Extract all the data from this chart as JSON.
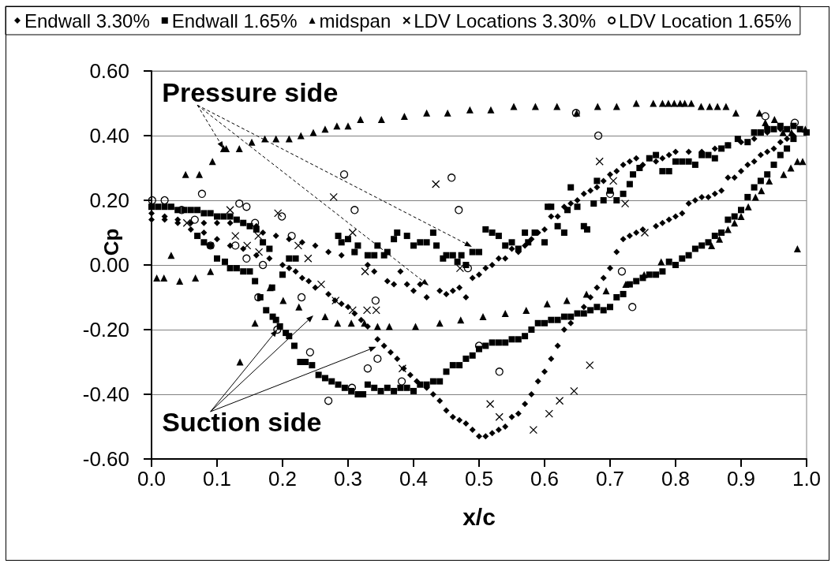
{
  "chart_data": {
    "type": "scatter",
    "xlabel": "x/c",
    "ylabel": "Cp",
    "xlim": [
      0,
      1
    ],
    "xticks": [
      {
        "value": 0,
        "label": "0.0"
      },
      {
        "value": 0.1,
        "label": "0.1"
      },
      {
        "value": 0.2,
        "label": "0.2"
      },
      {
        "value": 0.3,
        "label": "0.3"
      },
      {
        "value": 0.4,
        "label": "0.4"
      },
      {
        "value": 0.5,
        "label": "0.5"
      },
      {
        "value": 0.6,
        "label": "0.6"
      },
      {
        "value": 0.7,
        "label": "0.7"
      },
      {
        "value": 0.8,
        "label": "0.8"
      },
      {
        "value": 0.9,
        "label": "0.9"
      },
      {
        "value": 1,
        "label": "1.0"
      }
    ],
    "ylim": [
      -0.6,
      0.6
    ],
    "yticks": [
      {
        "value": -0.6,
        "label": "-0.60"
      },
      {
        "value": -0.4,
        "label": "-0.40"
      },
      {
        "value": -0.2,
        "label": "-0.20"
      },
      {
        "value": 0,
        "label": "0.00"
      },
      {
        "value": 0.2,
        "label": "0.20"
      },
      {
        "value": 0.4,
        "label": "0.40"
      },
      {
        "value": 0.6,
        "label": "0.60"
      }
    ],
    "grid": "y",
    "legend": "top left",
    "annotations": [
      {
        "text": "Pressure side",
        "x": 0.11,
        "y": 0.36
      },
      {
        "text": "Suction side",
        "x": 0.192,
        "y": -0.2
      }
    ],
    "series": [
      {
        "name": "Endwall 3.30%",
        "color": "#000000",
        "marker": "diamond",
        "x": [
          0.0,
          0.02,
          0.04,
          0.06,
          0.08,
          0.1,
          0.12,
          0.14,
          0.16,
          0.17,
          0.19,
          0.21,
          0.23,
          0.25,
          0.27,
          0.29,
          0.31,
          0.33,
          0.34,
          0.36,
          0.37,
          0.38,
          0.39,
          0.4,
          0.41,
          0.42,
          0.44,
          0.45,
          0.46,
          0.47,
          0.48,
          0.49,
          0.5,
          0.51,
          0.52,
          0.53,
          0.54,
          0.55,
          0.56,
          0.57,
          0.58,
          0.59,
          0.6,
          0.61,
          0.62,
          0.63,
          0.64,
          0.65,
          0.66,
          0.67,
          0.68,
          0.69,
          0.7,
          0.71,
          0.72,
          0.73,
          0.74,
          0.75,
          0.76,
          0.77,
          0.78,
          0.79,
          0.8,
          0.82,
          0.84,
          0.86,
          0.88,
          0.9,
          0.92,
          0.94,
          0.96,
          0.98,
          0.0,
          0.02,
          0.04,
          0.06,
          0.08,
          0.1,
          0.12,
          0.14,
          0.16,
          0.18,
          0.2,
          0.21,
          0.22,
          0.23,
          0.24,
          0.25,
          0.27,
          0.28,
          0.29,
          0.3,
          0.31,
          0.32,
          0.33,
          0.345,
          0.355,
          0.365,
          0.375,
          0.385,
          0.395,
          0.405,
          0.42,
          0.43,
          0.44,
          0.45,
          0.46,
          0.47,
          0.48,
          0.49,
          0.5,
          0.51,
          0.52,
          0.53,
          0.54,
          0.55,
          0.56,
          0.57,
          0.58,
          0.59,
          0.6,
          0.61,
          0.62,
          0.63,
          0.64,
          0.66,
          0.67,
          0.68,
          0.69,
          0.7,
          0.71,
          0.72,
          0.73,
          0.74,
          0.75,
          0.77,
          0.78,
          0.79,
          0.8,
          0.81,
          0.82,
          0.83,
          0.84,
          0.85,
          0.86,
          0.87,
          0.88,
          0.89,
          0.9,
          0.91,
          0.92,
          0.93,
          0.94,
          0.95,
          0.96,
          0.97,
          0.98
        ],
        "values": [
          0.16,
          0.15,
          0.14,
          0.13,
          0.13,
          0.13,
          0.13,
          0.13,
          0.12,
          0.1,
          0.09,
          0.08,
          0.07,
          0.06,
          0.04,
          0.03,
          0.04,
          0.0,
          -0.02,
          -0.05,
          -0.06,
          -0.02,
          -0.06,
          -0.08,
          -0.06,
          -0.1,
          -0.08,
          -0.09,
          -0.08,
          -0.07,
          -0.1,
          -0.04,
          -0.03,
          -0.01,
          0.0,
          0.02,
          0.02,
          0.05,
          0.04,
          0.06,
          0.08,
          0.1,
          0.11,
          0.15,
          0.15,
          0.18,
          0.19,
          0.2,
          0.22,
          0.23,
          0.24,
          0.26,
          0.28,
          0.29,
          0.31,
          0.32,
          0.33,
          0.31,
          0.33,
          0.32,
          0.33,
          0.34,
          0.35,
          0.35,
          0.35,
          0.36,
          0.37,
          0.38,
          0.39,
          0.41,
          0.42,
          0.43,
          0.14,
          0.14,
          0.13,
          0.11,
          0.1,
          0.08,
          0.06,
          0.05,
          0.03,
          0.02,
          0.0,
          -0.01,
          -0.02,
          -0.04,
          -0.05,
          -0.07,
          -0.09,
          -0.11,
          -0.12,
          -0.13,
          -0.15,
          -0.17,
          -0.19,
          -0.23,
          -0.25,
          -0.27,
          -0.29,
          -0.32,
          -0.34,
          -0.36,
          -0.38,
          -0.4,
          -0.42,
          -0.45,
          -0.47,
          -0.48,
          -0.49,
          -0.51,
          -0.53,
          -0.53,
          -0.52,
          -0.51,
          -0.5,
          -0.47,
          -0.46,
          -0.43,
          -0.4,
          -0.36,
          -0.33,
          -0.29,
          -0.25,
          -0.2,
          -0.18,
          -0.13,
          -0.1,
          -0.07,
          -0.04,
          -0.01,
          0.04,
          0.08,
          0.09,
          0.1,
          0.11,
          0.12,
          0.13,
          0.14,
          0.15,
          0.16,
          0.19,
          0.2,
          0.21,
          0.21,
          0.22,
          0.23,
          0.27,
          0.27,
          0.29,
          0.31,
          0.32,
          0.34,
          0.35,
          0.36,
          0.38,
          0.39,
          0.4
        ]
      },
      {
        "name": "Endwall 1.65%",
        "color": "#000000",
        "marker": "square",
        "x": [
          0.0,
          0.01,
          0.02,
          0.03,
          0.04,
          0.05,
          0.06,
          0.07,
          0.08,
          0.09,
          0.1,
          0.11,
          0.12,
          0.13,
          0.14,
          0.15,
          0.16,
          0.17,
          0.18,
          0.21,
          0.22,
          0.285,
          0.29,
          0.3,
          0.31,
          0.315,
          0.33,
          0.34,
          0.345,
          0.355,
          0.36,
          0.37,
          0.375,
          0.39,
          0.4,
          0.41,
          0.42,
          0.43,
          0.435,
          0.445,
          0.45,
          0.46,
          0.467,
          0.473,
          0.48,
          0.49,
          0.5,
          0.51,
          0.52,
          0.53,
          0.54,
          0.55,
          0.56,
          0.57,
          0.575,
          0.585,
          0.6,
          0.605,
          0.61,
          0.62,
          0.63,
          0.635,
          0.64,
          0.65,
          0.66,
          0.665,
          0.675,
          0.68,
          0.69,
          0.7,
          0.71,
          0.72,
          0.73,
          0.735,
          0.745,
          0.76,
          0.77,
          0.78,
          0.79,
          0.8,
          0.81,
          0.82,
          0.83,
          0.84,
          0.85,
          0.86,
          0.87,
          0.88,
          0.895,
          0.91,
          0.92,
          0.93,
          0.94,
          0.95,
          0.96,
          0.97,
          0.98,
          0.99,
          1.0,
          0.07,
          0.08,
          0.09,
          0.1,
          0.112,
          0.12,
          0.13,
          0.14,
          0.15,
          0.158,
          0.166,
          0.175,
          0.184,
          0.185,
          0.19,
          0.196,
          0.2,
          0.205,
          0.21,
          0.218,
          0.227,
          0.235,
          0.245,
          0.255,
          0.265,
          0.275,
          0.285,
          0.295,
          0.305,
          0.315,
          0.323,
          0.33,
          0.34,
          0.35,
          0.36,
          0.37,
          0.38,
          0.39,
          0.4,
          0.41,
          0.42,
          0.43,
          0.44,
          0.45,
          0.46,
          0.47,
          0.48,
          0.49,
          0.5,
          0.51,
          0.52,
          0.53,
          0.54,
          0.55,
          0.56,
          0.57,
          0.58,
          0.59,
          0.6,
          0.61,
          0.62,
          0.63,
          0.64,
          0.65,
          0.66,
          0.67,
          0.68,
          0.69,
          0.7,
          0.71,
          0.72,
          0.73,
          0.74,
          0.75,
          0.76,
          0.77,
          0.78,
          0.79,
          0.8,
          0.81,
          0.82,
          0.83,
          0.84,
          0.85,
          0.86,
          0.87,
          0.88,
          0.89,
          0.9,
          0.91,
          0.92,
          0.93,
          0.94,
          0.95,
          0.96,
          0.97,
          0.98
        ],
        "values": [
          0.18,
          0.18,
          0.18,
          0.18,
          0.17,
          0.17,
          0.17,
          0.17,
          0.16,
          0.16,
          0.15,
          0.15,
          0.15,
          0.14,
          0.13,
          0.12,
          0.11,
          0.07,
          0.05,
          0.02,
          0.02,
          0.09,
          0.07,
          0.08,
          0.04,
          0.06,
          0.03,
          0.03,
          0.06,
          0.03,
          0.04,
          0.08,
          0.1,
          0.09,
          0.06,
          0.07,
          0.07,
          0.1,
          0.06,
          0.02,
          0.03,
          0.03,
          0.01,
          0.03,
          0.0,
          0.04,
          0.04,
          0.11,
          0.1,
          0.09,
          0.06,
          0.07,
          0.05,
          0.1,
          0.07,
          0.1,
          0.07,
          0.18,
          0.18,
          0.12,
          0.1,
          0.17,
          0.24,
          0.18,
          0.12,
          0.11,
          0.19,
          0.26,
          0.2,
          0.23,
          0.2,
          0.22,
          0.25,
          0.28,
          0.3,
          0.33,
          0.34,
          0.29,
          0.29,
          0.32,
          0.32,
          0.32,
          0.31,
          0.34,
          0.34,
          0.33,
          0.36,
          0.37,
          0.39,
          0.38,
          0.41,
          0.41,
          0.42,
          0.42,
          0.43,
          0.42,
          0.43,
          0.42,
          0.41,
          0.09,
          0.07,
          0.06,
          0.02,
          0.01,
          -0.01,
          -0.01,
          -0.02,
          -0.02,
          -0.05,
          -0.1,
          -0.14,
          -0.07,
          -0.16,
          -0.17,
          -0.19,
          -0.03,
          -0.21,
          -0.22,
          -0.25,
          -0.3,
          -0.3,
          -0.31,
          -0.34,
          -0.35,
          -0.36,
          -0.37,
          -0.38,
          -0.39,
          -0.4,
          -0.4,
          -0.37,
          -0.38,
          -0.39,
          -0.38,
          -0.39,
          -0.38,
          -0.38,
          -0.39,
          -0.37,
          -0.37,
          -0.36,
          -0.36,
          -0.33,
          -0.31,
          -0.31,
          -0.29,
          -0.28,
          -0.26,
          -0.25,
          -0.24,
          -0.24,
          -0.24,
          -0.23,
          -0.23,
          -0.22,
          -0.2,
          -0.18,
          -0.18,
          -0.17,
          -0.17,
          -0.16,
          -0.16,
          -0.15,
          -0.15,
          -0.14,
          -0.13,
          -0.14,
          -0.13,
          -0.1,
          -0.09,
          -0.06,
          -0.05,
          -0.04,
          -0.03,
          -0.03,
          -0.02,
          0.01,
          0.0,
          0.02,
          0.03,
          0.05,
          0.06,
          0.07,
          0.09,
          0.1,
          0.14,
          0.15,
          0.17,
          0.21,
          0.24,
          0.26,
          0.28,
          0.31,
          0.34,
          0.36,
          0.39
        ]
      },
      {
        "name": "midspan",
        "color": "#000000",
        "marker": "triangle",
        "x": [
          0.008,
          0.019,
          0.03,
          0.043,
          0.052,
          0.067,
          0.073,
          0.09,
          0.093,
          0.11,
          0.114,
          0.134,
          0.135,
          0.153,
          0.158,
          0.173,
          0.181,
          0.19,
          0.201,
          0.21,
          0.225,
          0.228,
          0.247,
          0.265,
          0.265,
          0.283,
          0.284,
          0.3,
          0.305,
          0.319,
          0.325,
          0.345,
          0.351,
          0.363,
          0.386,
          0.403,
          0.42,
          0.44,
          0.452,
          0.472,
          0.486,
          0.506,
          0.518,
          0.54,
          0.553,
          0.572,
          0.586,
          0.604,
          0.619,
          0.634,
          0.649,
          0.664,
          0.681,
          0.694,
          0.71,
          0.724,
          0.74,
          0.752,
          0.766,
          0.778,
          0.78,
          0.789,
          0.798,
          0.807,
          0.814,
          0.824,
          0.839,
          0.852,
          0.855,
          0.864,
          0.867,
          0.877,
          0.88,
          0.89,
          0.892,
          0.9,
          0.911,
          0.922,
          0.928,
          0.931,
          0.937,
          0.943,
          0.951,
          0.964,
          0.965,
          0.976,
          0.977,
          0.986,
          0.986,
          0.994,
          0.998
        ],
        "values": [
          -0.04,
          -0.04,
          0.03,
          -0.05,
          0.28,
          -0.04,
          0.28,
          -0.02,
          0.32,
          0.36,
          0.36,
          0.36,
          -0.3,
          0.38,
          -0.18,
          0.39,
          -0.07,
          0.39,
          -0.11,
          0.39,
          -0.13,
          0.4,
          0.41,
          0.42,
          -0.16,
          0.43,
          -0.18,
          0.43,
          -0.18,
          0.45,
          -0.18,
          -0.19,
          0.45,
          -0.19,
          0.46,
          -0.19,
          0.47,
          -0.18,
          0.47,
          -0.17,
          0.48,
          -0.16,
          0.48,
          -0.15,
          0.49,
          -0.14,
          0.49,
          -0.12,
          0.49,
          -0.11,
          0.47,
          -0.09,
          0.49,
          -0.08,
          0.49,
          -0.06,
          0.5,
          -0.03,
          0.5,
          0.01,
          0.5,
          0.5,
          0.5,
          0.5,
          0.5,
          0.5,
          0.49,
          0.49,
          0.06,
          0.49,
          0.08,
          0.49,
          0.11,
          0.13,
          0.47,
          0.15,
          0.18,
          0.21,
          0.47,
          0.23,
          0.44,
          0.26,
          0.45,
          0.41,
          0.28,
          0.3,
          0.41,
          0.32,
          0.05,
          0.32,
          0.42
        ]
      },
      {
        "name": "LDV Locations 3.30%",
        "color": "#000000",
        "marker": "cross",
        "x": [
          0.054,
          0.12,
          0.128,
          0.146,
          0.163,
          0.164,
          0.193,
          0.224,
          0.239,
          0.259,
          0.278,
          0.281,
          0.307,
          0.307,
          0.326,
          0.329,
          0.343,
          0.383,
          0.434,
          0.471,
          0.517,
          0.531,
          0.583,
          0.607,
          0.623,
          0.645,
          0.669,
          0.684,
          0.705,
          0.723,
          0.753
        ],
        "values": [
          0.13,
          0.17,
          0.09,
          0.06,
          0.09,
          0.04,
          0.16,
          0.06,
          0.02,
          -0.06,
          0.21,
          -0.11,
          0.1,
          -0.14,
          -0.02,
          -0.14,
          -0.14,
          -0.32,
          0.25,
          -0.01,
          -0.43,
          -0.47,
          -0.51,
          -0.46,
          -0.42,
          -0.39,
          -0.31,
          0.32,
          0.26,
          0.19,
          0.1
        ]
      },
      {
        "name": "LDV Location 1.65%",
        "color": "#000000",
        "marker": "circle",
        "x": [
          0.001,
          0.02,
          0.046,
          0.066,
          0.077,
          0.09,
          0.128,
          0.134,
          0.145,
          0.145,
          0.158,
          0.163,
          0.17,
          0.192,
          0.199,
          0.214,
          0.229,
          0.242,
          0.27,
          0.294,
          0.306,
          0.31,
          0.33,
          0.342,
          0.345,
          0.382,
          0.458,
          0.469,
          0.483,
          0.5,
          0.531,
          0.648,
          0.682,
          0.7,
          0.718,
          0.734,
          0.937,
          0.982
        ],
        "values": [
          0.2,
          0.2,
          0.17,
          0.14,
          0.22,
          0.06,
          0.06,
          0.19,
          0.18,
          0.02,
          0.13,
          -0.1,
          0.0,
          -0.2,
          0.15,
          0.09,
          -0.1,
          -0.27,
          -0.42,
          0.28,
          -0.38,
          0.17,
          -0.32,
          -0.11,
          -0.29,
          -0.36,
          0.27,
          0.17,
          -0.01,
          -0.25,
          -0.33,
          0.47,
          0.4,
          0.22,
          -0.02,
          -0.13,
          0.46,
          0.44
        ]
      }
    ]
  }
}
